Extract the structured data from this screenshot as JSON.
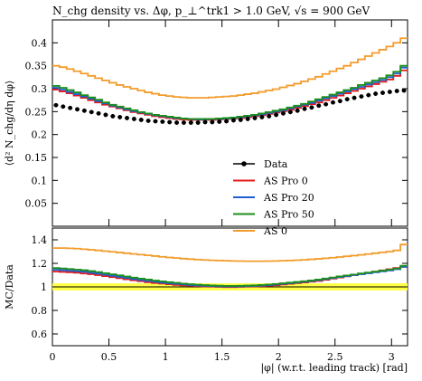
{
  "chart_data": [
    {
      "type": "line",
      "title": "N_chg density vs. Δφ, p_⊥^trk1 > 1.0 GeV, √s = 900 GeV",
      "ylabel": "⟨d² N_chg/dη dφ⟩",
      "xlabel": "",
      "xlim": [
        0,
        3.14159
      ],
      "ylim": [
        0,
        0.45
      ],
      "yticks": [
        0.05,
        0.1,
        0.15,
        0.2,
        0.25,
        0.3,
        0.35,
        0.4
      ],
      "x": [
        0.0314,
        0.0942,
        0.1571,
        0.2199,
        0.2827,
        0.3456,
        0.4084,
        0.4712,
        0.5341,
        0.5969,
        0.6597,
        0.7226,
        0.7854,
        0.8482,
        0.9111,
        0.9739,
        1.0367,
        1.0996,
        1.1624,
        1.2252,
        1.2881,
        1.3509,
        1.4137,
        1.4765,
        1.5394,
        1.6022,
        1.665,
        1.7279,
        1.7907,
        1.8535,
        1.9164,
        1.9792,
        2.042,
        2.1049,
        2.1677,
        2.2305,
        2.2934,
        2.3562,
        2.419,
        2.4819,
        2.5447,
        2.6075,
        2.6704,
        2.7332,
        2.796,
        2.8588,
        2.9217,
        2.9845,
        3.0473,
        3.1102
      ],
      "series": [
        {
          "name": "Data",
          "style": "points",
          "color": "#000000",
          "values": [
            0.264,
            0.261,
            0.258,
            0.255,
            0.252,
            0.249,
            0.246,
            0.243,
            0.24,
            0.238,
            0.236,
            0.234,
            0.232,
            0.23,
            0.229,
            0.228,
            0.227,
            0.226,
            0.226,
            0.226,
            0.226,
            0.227,
            0.227,
            0.228,
            0.229,
            0.231,
            0.232,
            0.234,
            0.236,
            0.238,
            0.24,
            0.243,
            0.246,
            0.249,
            0.252,
            0.256,
            0.259,
            0.263,
            0.266,
            0.27,
            0.273,
            0.277,
            0.28,
            0.283,
            0.286,
            0.289,
            0.291,
            0.293,
            0.295,
            0.296
          ]
        },
        {
          "name": "AS Pro 0",
          "style": "step",
          "color": "#e31a1c",
          "values": [
            0.298,
            0.294,
            0.29,
            0.285,
            0.28,
            0.275,
            0.27,
            0.265,
            0.261,
            0.257,
            0.253,
            0.249,
            0.246,
            0.243,
            0.24,
            0.238,
            0.236,
            0.234,
            0.233,
            0.232,
            0.232,
            0.232,
            0.232,
            0.233,
            0.234,
            0.235,
            0.236,
            0.238,
            0.24,
            0.242,
            0.245,
            0.248,
            0.251,
            0.254,
            0.258,
            0.262,
            0.266,
            0.27,
            0.275,
            0.28,
            0.285,
            0.29,
            0.295,
            0.3,
            0.305,
            0.31,
            0.315,
            0.32,
            0.328,
            0.34
          ]
        },
        {
          "name": "AS Pro 20",
          "style": "step",
          "color": "#1f5fd1",
          "values": [
            0.302,
            0.298,
            0.293,
            0.288,
            0.283,
            0.278,
            0.273,
            0.268,
            0.263,
            0.259,
            0.255,
            0.251,
            0.248,
            0.245,
            0.242,
            0.24,
            0.238,
            0.236,
            0.235,
            0.234,
            0.233,
            0.233,
            0.234,
            0.234,
            0.235,
            0.236,
            0.238,
            0.24,
            0.242,
            0.244,
            0.247,
            0.25,
            0.253,
            0.257,
            0.261,
            0.265,
            0.269,
            0.274,
            0.279,
            0.284,
            0.289,
            0.294,
            0.299,
            0.304,
            0.309,
            0.314,
            0.319,
            0.325,
            0.333,
            0.346
          ]
        },
        {
          "name": "AS Pro 50",
          "style": "step",
          "color": "#1b8f1b",
          "values": [
            0.306,
            0.302,
            0.297,
            0.292,
            0.286,
            0.281,
            0.276,
            0.27,
            0.265,
            0.261,
            0.257,
            0.253,
            0.249,
            0.246,
            0.243,
            0.241,
            0.239,
            0.237,
            0.235,
            0.234,
            0.234,
            0.234,
            0.234,
            0.235,
            0.236,
            0.237,
            0.239,
            0.241,
            0.243,
            0.246,
            0.249,
            0.252,
            0.255,
            0.259,
            0.263,
            0.267,
            0.272,
            0.277,
            0.282,
            0.287,
            0.292,
            0.297,
            0.302,
            0.308,
            0.313,
            0.318,
            0.323,
            0.329,
            0.337,
            0.35
          ]
        },
        {
          "name": "AS 0",
          "style": "step",
          "color": "#f39c2c",
          "values": [
            0.35,
            0.347,
            0.343,
            0.338,
            0.333,
            0.328,
            0.323,
            0.318,
            0.313,
            0.308,
            0.304,
            0.3,
            0.296,
            0.292,
            0.289,
            0.286,
            0.284,
            0.282,
            0.281,
            0.28,
            0.28,
            0.28,
            0.281,
            0.282,
            0.283,
            0.284,
            0.286,
            0.288,
            0.29,
            0.293,
            0.296,
            0.299,
            0.303,
            0.307,
            0.311,
            0.316,
            0.321,
            0.326,
            0.332,
            0.338,
            0.344,
            0.35,
            0.357,
            0.364,
            0.371,
            0.378,
            0.385,
            0.392,
            0.4,
            0.41
          ]
        }
      ],
      "legend_position": "bottom-right"
    },
    {
      "type": "line",
      "title": "",
      "ylabel": "MC/Data",
      "xlabel": "|φ| (w.r.t. leading track) [rad]",
      "xlim": [
        0,
        3.14159
      ],
      "ylim": [
        0.5,
        1.5
      ],
      "yticks": [
        0.6,
        0.8,
        1,
        1.2,
        1.4
      ],
      "xticks": [
        0,
        0.5,
        1,
        1.5,
        2,
        2.5,
        3
      ],
      "band": {
        "center": 1.0,
        "halfwidth": 0.03,
        "color": "#ffff44"
      },
      "x": [
        0.0314,
        0.0942,
        0.1571,
        0.2199,
        0.2827,
        0.3456,
        0.4084,
        0.4712,
        0.5341,
        0.5969,
        0.6597,
        0.7226,
        0.7854,
        0.8482,
        0.9111,
        0.9739,
        1.0367,
        1.0996,
        1.1624,
        1.2252,
        1.2881,
        1.3509,
        1.4137,
        1.4765,
        1.5394,
        1.6022,
        1.665,
        1.7279,
        1.7907,
        1.8535,
        1.9164,
        1.9792,
        2.042,
        2.1049,
        2.1677,
        2.2305,
        2.2934,
        2.3562,
        2.419,
        2.4819,
        2.5447,
        2.6075,
        2.6704,
        2.7332,
        2.796,
        2.8588,
        2.9217,
        2.9845,
        3.0473,
        3.1102
      ],
      "series": [
        {
          "name": "AS Pro 0",
          "style": "step",
          "color": "#e31a1c",
          "values": [
            1.13,
            1.127,
            1.124,
            1.12,
            1.114,
            1.108,
            1.1,
            1.092,
            1.083,
            1.074,
            1.065,
            1.056,
            1.048,
            1.04,
            1.033,
            1.028,
            1.022,
            1.017,
            1.013,
            1.01,
            1.007,
            1.004,
            1.002,
            1.0,
            0.998,
            0.998,
            1.0,
            1.002,
            1.004,
            1.006,
            1.01,
            1.014,
            1.02,
            1.026,
            1.032,
            1.038,
            1.044,
            1.05,
            1.06,
            1.07,
            1.08,
            1.09,
            1.1,
            1.11,
            1.12,
            1.13,
            1.14,
            1.15,
            1.16,
            1.17
          ]
        },
        {
          "name": "AS Pro 20",
          "style": "step",
          "color": "#1f5fd1",
          "values": [
            1.145,
            1.142,
            1.138,
            1.133,
            1.128,
            1.12,
            1.112,
            1.103,
            1.094,
            1.085,
            1.076,
            1.067,
            1.058,
            1.05,
            1.043,
            1.036,
            1.03,
            1.025,
            1.02,
            1.016,
            1.012,
            1.009,
            1.006,
            1.004,
            1.003,
            1.003,
            1.004,
            1.006,
            1.008,
            1.011,
            1.015,
            1.02,
            1.026,
            1.031,
            1.037,
            1.043,
            1.05,
            1.057,
            1.066,
            1.075,
            1.084,
            1.092,
            1.1,
            1.108,
            1.116,
            1.124,
            1.132,
            1.14,
            1.15,
            1.17
          ]
        },
        {
          "name": "AS Pro 50",
          "style": "step",
          "color": "#1b8f1b",
          "values": [
            1.16,
            1.157,
            1.152,
            1.147,
            1.142,
            1.134,
            1.126,
            1.116,
            1.107,
            1.098,
            1.088,
            1.079,
            1.07,
            1.062,
            1.054,
            1.047,
            1.04,
            1.034,
            1.028,
            1.023,
            1.019,
            1.015,
            1.012,
            1.01,
            1.008,
            1.008,
            1.009,
            1.011,
            1.013,
            1.016,
            1.02,
            1.025,
            1.031,
            1.036,
            1.042,
            1.048,
            1.055,
            1.062,
            1.071,
            1.08,
            1.089,
            1.097,
            1.105,
            1.114,
            1.122,
            1.13,
            1.138,
            1.146,
            1.156,
            1.18
          ]
        },
        {
          "name": "AS 0",
          "style": "step",
          "color": "#f39c2c",
          "values": [
            1.33,
            1.33,
            1.328,
            1.325,
            1.32,
            1.315,
            1.31,
            1.304,
            1.298,
            1.292,
            1.286,
            1.28,
            1.274,
            1.268,
            1.262,
            1.256,
            1.25,
            1.245,
            1.24,
            1.236,
            1.232,
            1.229,
            1.226,
            1.224,
            1.222,
            1.22,
            1.219,
            1.218,
            1.218,
            1.218,
            1.219,
            1.22,
            1.222,
            1.224,
            1.227,
            1.23,
            1.234,
            1.238,
            1.243,
            1.248,
            1.254,
            1.26,
            1.266,
            1.272,
            1.279,
            1.286,
            1.293,
            1.3,
            1.31,
            1.36
          ]
        }
      ]
    }
  ]
}
